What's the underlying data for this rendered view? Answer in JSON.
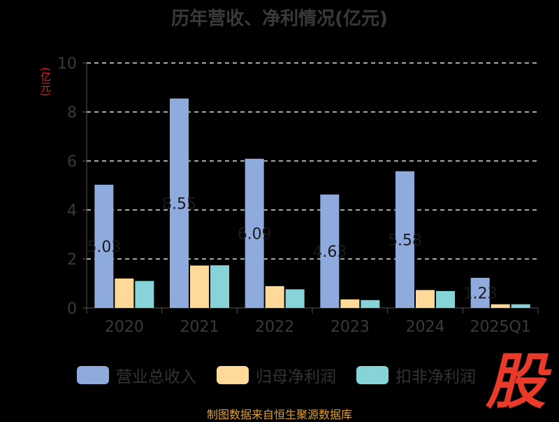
{
  "chart_data": {
    "type": "bar",
    "title": "历年营收、净利情况(亿元)",
    "ylabel": "(亿元)",
    "xlabel": "",
    "categories": [
      "2020",
      "2021",
      "2022",
      "2023",
      "2024",
      "2025Q1"
    ],
    "ylim": [
      0,
      10
    ],
    "yticks": [
      "0",
      "2",
      "4",
      "6",
      "8",
      "10"
    ],
    "grid": true,
    "legend_position": "bottom",
    "series": [
      {
        "name": "营业总收入",
        "color": "#8faadc",
        "values": [
          5.03,
          8.55,
          6.09,
          4.63,
          5.58,
          1.23
        ],
        "value_labels": [
          "5.03",
          "8.55",
          "6.09",
          "4.63",
          "5.58",
          "1.23"
        ]
      },
      {
        "name": "归母净利润",
        "color": "#ffd997",
        "values": [
          1.2,
          1.73,
          0.89,
          0.35,
          0.73,
          0.15
        ]
      },
      {
        "name": "扣非净利润",
        "color": "#86d4d8",
        "values": [
          1.1,
          1.74,
          0.76,
          0.32,
          0.69,
          0.15
        ]
      }
    ]
  },
  "source": "制图数据来自恒生聚源数据库",
  "logo_text": "股",
  "colors": {
    "background": "#000000",
    "title": "#3a3a3a",
    "axis": "#555555",
    "grid": "#dddddd",
    "unit": "#e0201a",
    "source": "#e0a030",
    "logo": "#ea3a2a"
  }
}
